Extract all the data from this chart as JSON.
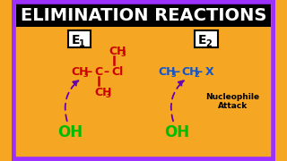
{
  "bg_color": "#F5A623",
  "border_color": "#9B30FF",
  "title": "ELIMINATION REACTIONS",
  "title_bg": "#000000",
  "title_color": "#FFFFFF",
  "title_fontsize": 15,
  "red_color": "#CC0000",
  "blue_color": "#1155CC",
  "green_color": "#00BB00",
  "purple_color": "#6600AA",
  "nucleophile_text1": "Nucleophile",
  "nucleophile_text2": "Attack"
}
